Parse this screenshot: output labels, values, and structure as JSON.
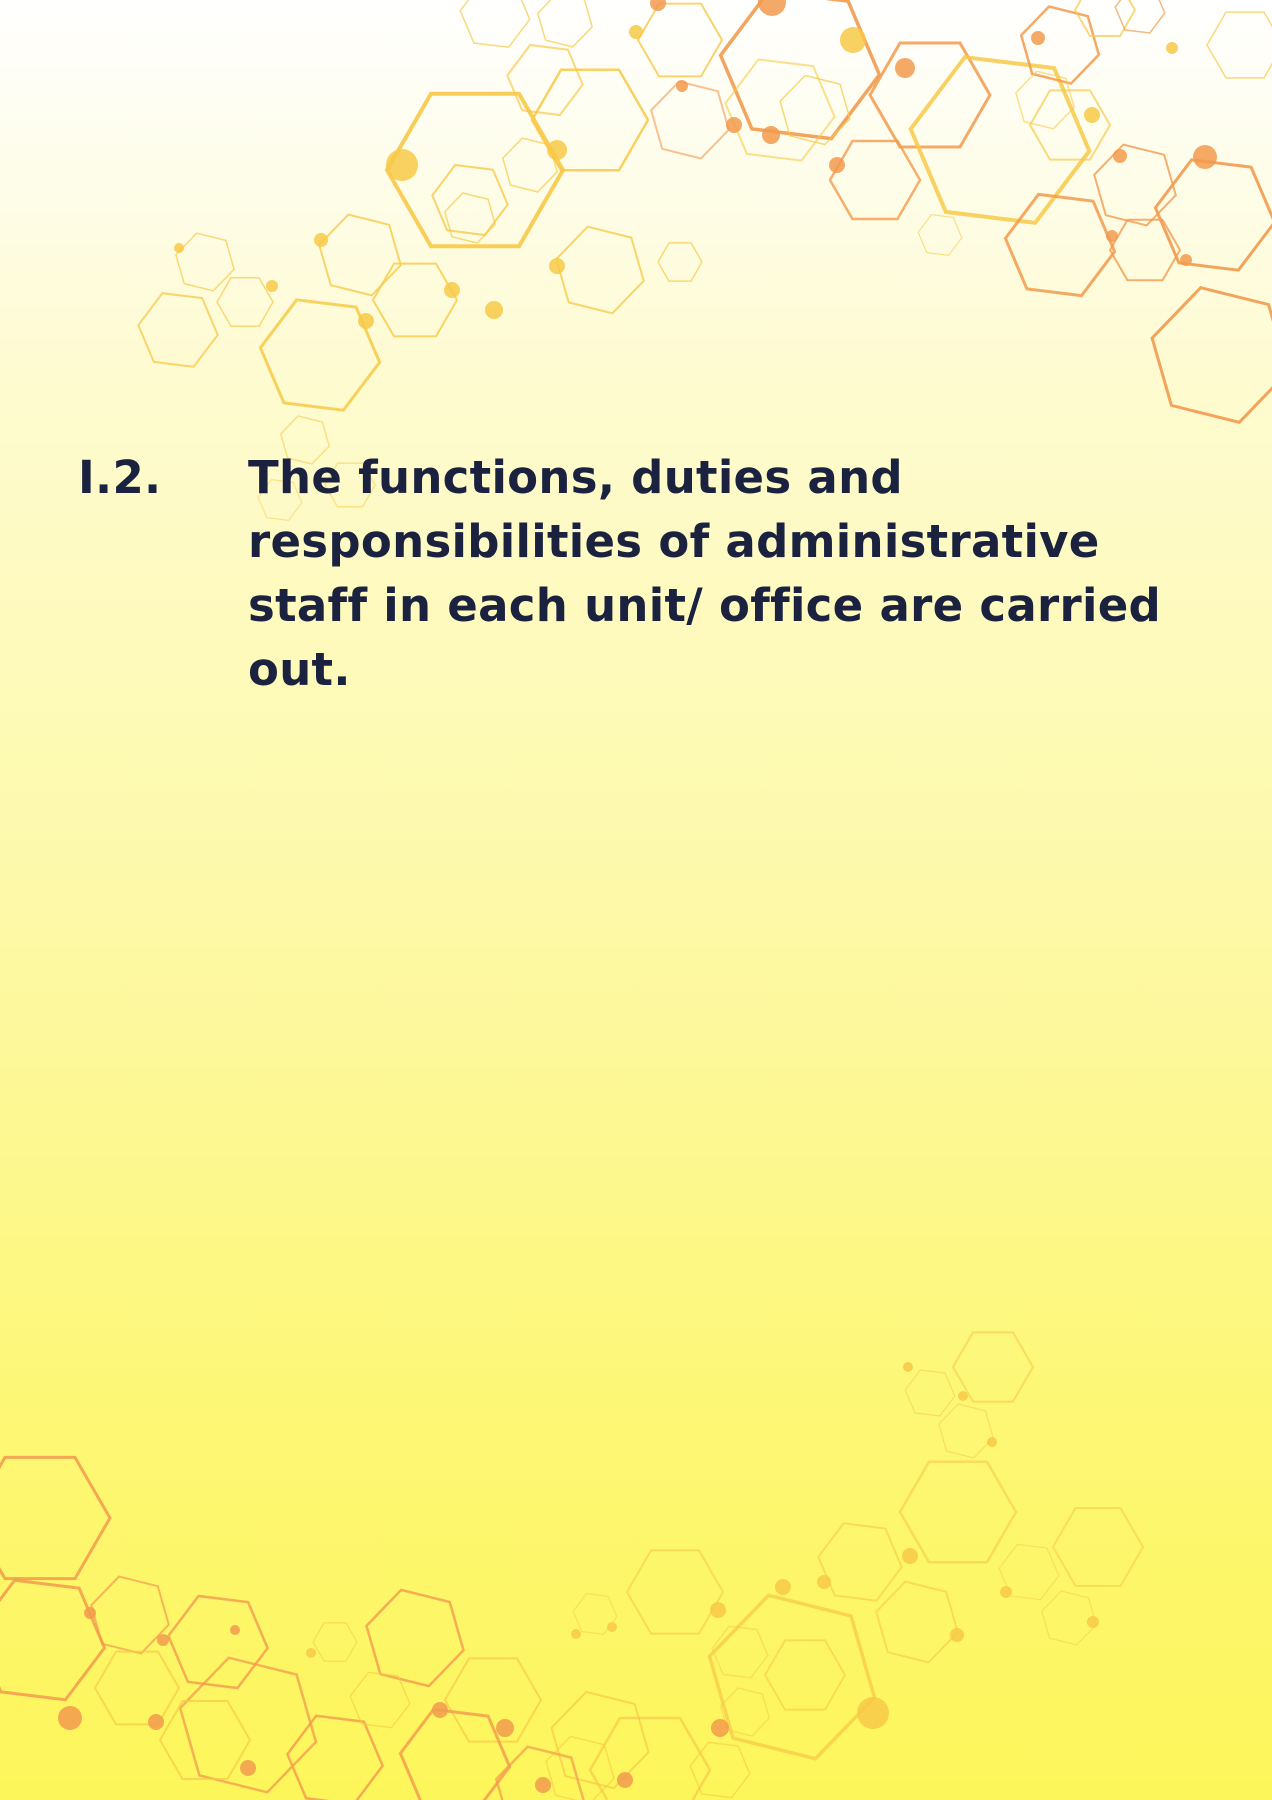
{
  "section": {
    "number": "I.2.",
    "statement": "The functions, duties and responsibilities of administrative staff in each unit/ office are carried out."
  },
  "decoration": {
    "name": "hexagon-network-pattern",
    "colors": {
      "yellow": "#f7c948",
      "orange": "#f29a4e",
      "text": "#1a2240"
    }
  }
}
